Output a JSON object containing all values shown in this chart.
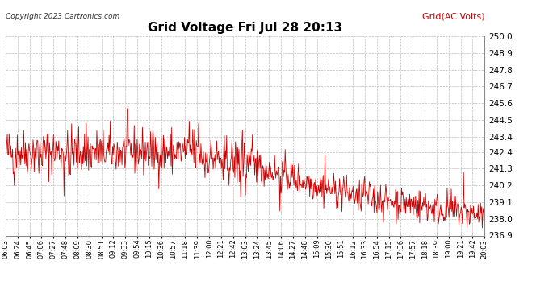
{
  "title": "Grid Voltage Fri Jul 28 20:13",
  "legend_label": "Grid(AC Volts)",
  "copyright_text": "Copyright 2023 Cartronics.com",
  "line_color": "#cc0000",
  "background_color": "#ffffff",
  "grid_color": "#bbbbbb",
  "ylim": [
    236.9,
    250.0
  ],
  "yticks": [
    236.9,
    238.0,
    239.1,
    240.2,
    241.3,
    242.4,
    243.4,
    244.5,
    245.6,
    246.7,
    247.8,
    248.9,
    250.0
  ],
  "xtick_labels": [
    "06:03",
    "06:24",
    "06:45",
    "07:06",
    "07:27",
    "07:48",
    "08:09",
    "08:30",
    "08:51",
    "09:12",
    "09:33",
    "09:54",
    "10:15",
    "10:36",
    "10:57",
    "11:18",
    "11:39",
    "12:00",
    "12:21",
    "12:42",
    "13:03",
    "13:24",
    "13:45",
    "14:06",
    "14:27",
    "14:48",
    "15:09",
    "15:30",
    "15:51",
    "16:12",
    "16:33",
    "16:54",
    "17:15",
    "17:36",
    "17:57",
    "18:18",
    "18:39",
    "19:00",
    "19:21",
    "19:42",
    "20:03"
  ],
  "seed": 42,
  "n_points": 820,
  "title_fontsize": 11,
  "ytick_fontsize": 7.5,
  "xtick_fontsize": 6.0,
  "legend_fontsize": 8.0,
  "copyright_fontsize": 6.5,
  "linewidth": 0.6
}
